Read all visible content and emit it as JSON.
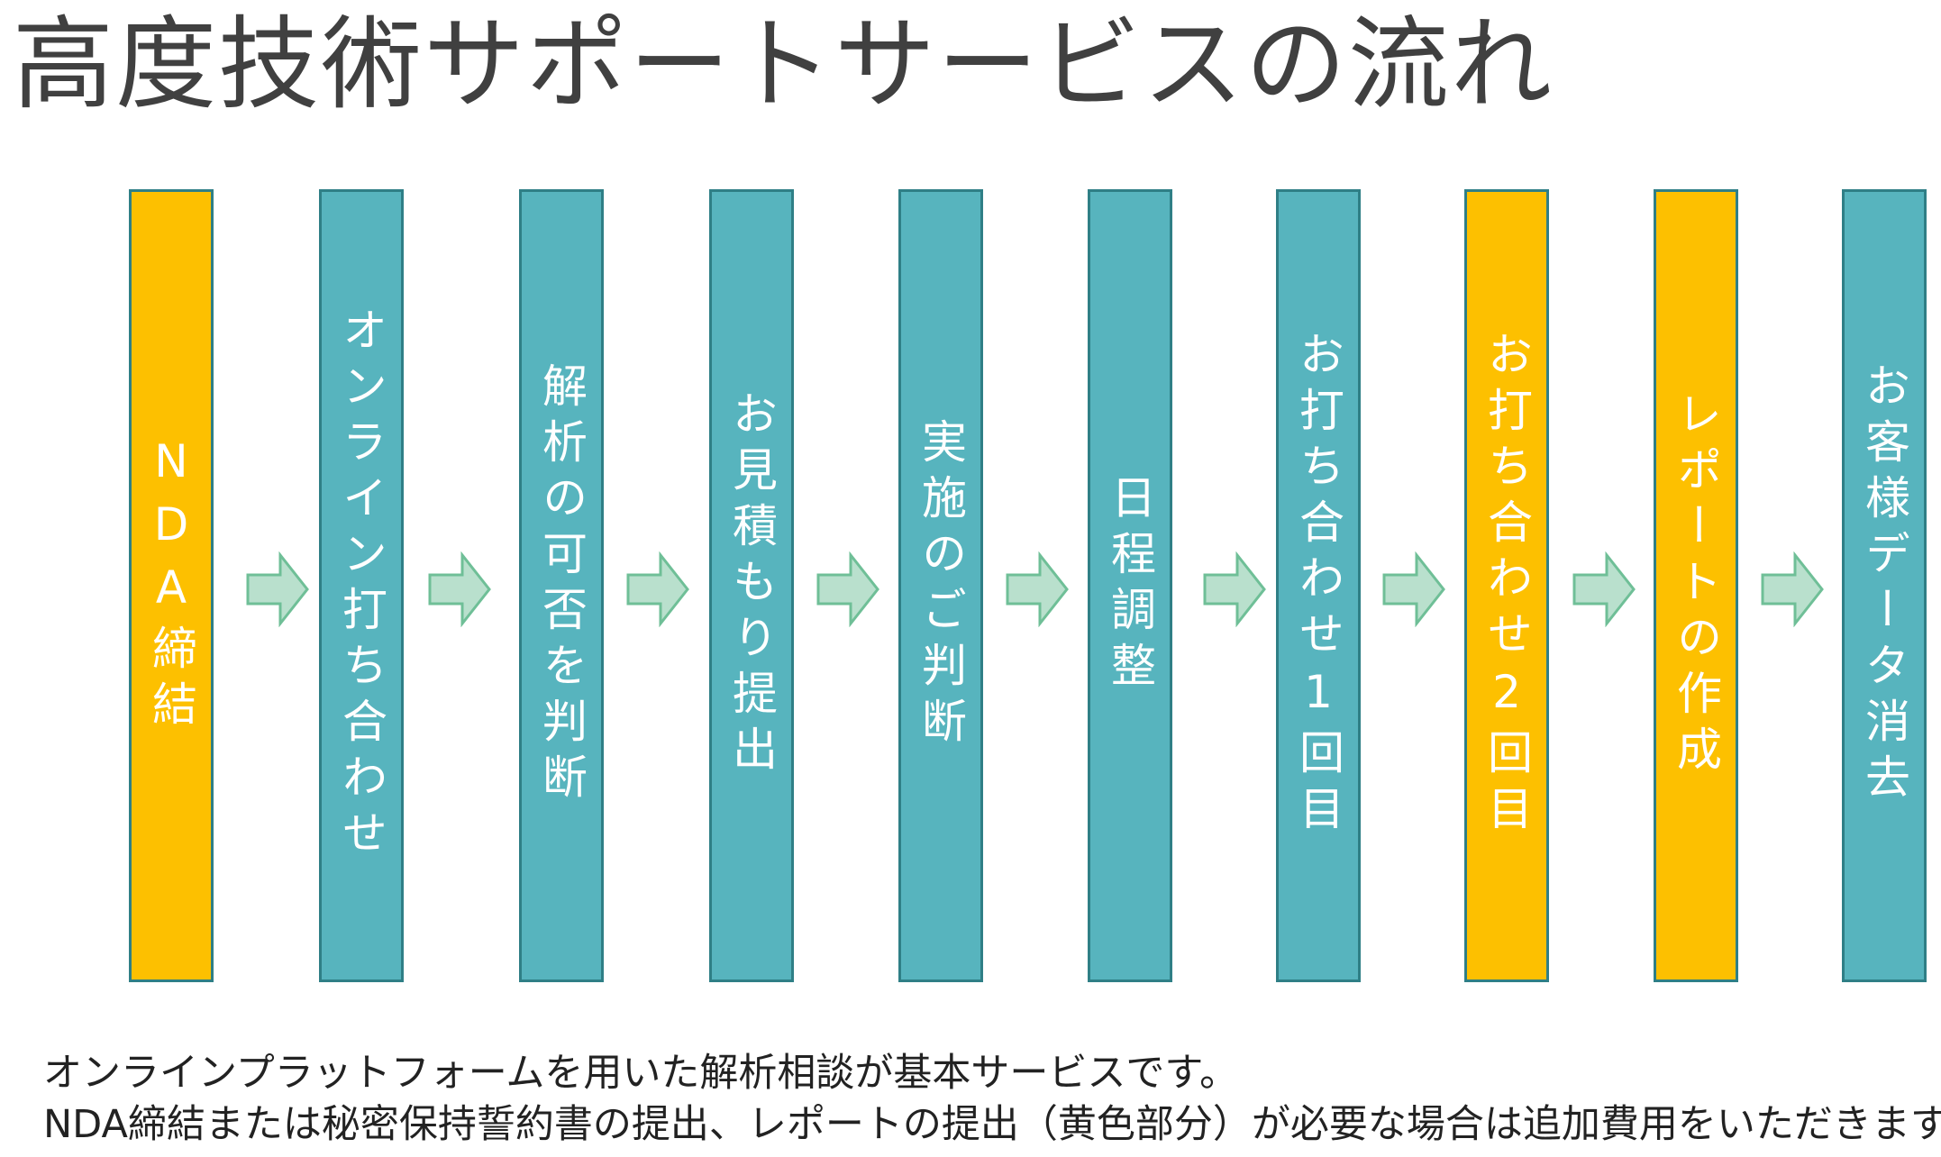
{
  "title": "高度技術サポートサービスの流れ",
  "steps": [
    {
      "label": "NDA締結",
      "color": "yellow"
    },
    {
      "label": "オンライン打ち合わせ",
      "color": "teal"
    },
    {
      "label": "解析の可否を判断",
      "color": "teal"
    },
    {
      "label": "お見積もり提出",
      "color": "teal"
    },
    {
      "label": "実施のご判断",
      "color": "teal"
    },
    {
      "label": "日程調整",
      "color": "teal"
    },
    {
      "label": "お打ち合わせ1回目",
      "color": "teal"
    },
    {
      "label": "お打ち合わせ2回目",
      "color": "yellow"
    },
    {
      "label": "レポートの作成",
      "color": "yellow"
    },
    {
      "label": "お客様データ消去",
      "color": "teal"
    }
  ],
  "notes": {
    "line1": "オンラインプラットフォームを用いた解析相談が基本サービスです。",
    "line2": "NDA締結または秘密保持誓約書の提出、レポートの提出（黄色部分）が必要な場合は追加費用をいただきます。"
  },
  "colors": {
    "teal": "#57b4be",
    "yellow": "#fdc000",
    "border": "#2f7f86",
    "arrow_fill": "#b9e0cd",
    "arrow_stroke": "#6fbf97"
  }
}
